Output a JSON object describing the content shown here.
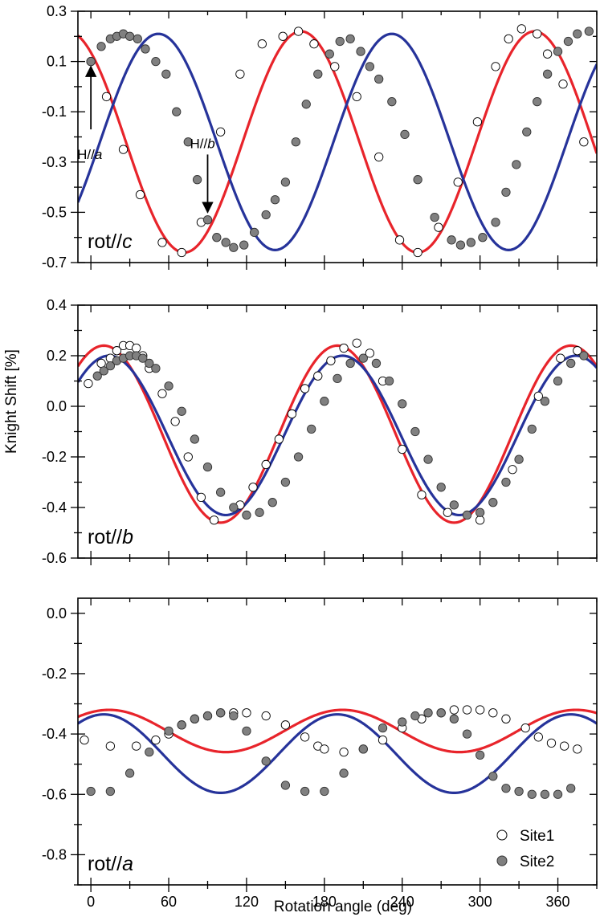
{
  "figure": {
    "ylabel": "Knight Shift [%]",
    "xlabel": "Rotation angle (deg)"
  },
  "legend": {
    "site1": "Site1",
    "site2": "Site2"
  },
  "colors": {
    "site1_line": "#e8242b",
    "site2_line": "#26339a",
    "site1_marker_fill": "#ffffff",
    "site2_marker_fill": "#808080"
  },
  "chart_data": [
    {
      "type": "line",
      "panel_label": "rot//c",
      "x_axis": {
        "range": [
          -10,
          390
        ],
        "ticks": [
          0,
          60,
          120,
          180,
          240,
          300,
          360
        ],
        "show_tick_labels": false
      },
      "y_axis": {
        "range": [
          -0.7,
          0.3
        ],
        "ticks": [
          0.3,
          0.1,
          -0.1,
          -0.3,
          -0.5,
          -0.7
        ],
        "tick_labels": [
          "0.3",
          "0.1",
          "-0.1",
          "-0.3",
          "-0.5",
          "-0.7"
        ]
      },
      "annotations": [
        {
          "text_main": "H//",
          "text_italic": "a",
          "arrow_x": 0,
          "arrow_from_y": -0.17,
          "arrow_to_y": 0.08
        },
        {
          "text_main": "H//",
          "text_italic": "b",
          "arrow_x": 90,
          "arrow_from_y": -0.27,
          "arrow_to_y": -0.5
        }
      ],
      "series": [
        {
          "name": "Site1",
          "line": {
            "mean": -0.22,
            "amplitude": 0.44,
            "phase_deg": -18
          },
          "points": {
            "x": [
              0,
              12,
              25,
              38,
              55,
              70,
              85,
              100,
              115,
              132,
              148,
              160,
              172,
              188,
              205,
              222,
              238,
              252,
              268,
              283,
              298,
              312,
              322,
              332,
              344,
              352,
              364,
              380
            ],
            "y": [
              0.1,
              -0.04,
              -0.25,
              -0.43,
              -0.62,
              -0.66,
              -0.54,
              -0.18,
              0.05,
              0.17,
              0.2,
              0.22,
              0.17,
              0.08,
              -0.04,
              -0.28,
              -0.61,
              -0.66,
              -0.56,
              -0.38,
              -0.14,
              0.08,
              0.19,
              0.23,
              0.21,
              0.13,
              0.01,
              -0.22
            ]
          }
        },
        {
          "name": "Site2",
          "line": {
            "mean": -0.22,
            "amplitude": 0.43,
            "phase_deg": 52
          },
          "points": {
            "x": [
              0,
              8,
              15,
              20,
              25,
              30,
              36,
              42,
              50,
              58,
              66,
              75,
              82,
              90,
              97,
              104,
              110,
              118,
              126,
              135,
              142,
              150,
              158,
              166,
              175,
              184,
              192,
              200,
              208,
              215,
              222,
              232,
              242,
              252,
              265,
              278,
              285,
              293,
              302,
              312,
              320,
              328,
              336,
              344,
              352,
              360,
              368,
              375,
              384
            ],
            "y": [
              0.1,
              0.16,
              0.19,
              0.2,
              0.21,
              0.2,
              0.19,
              0.15,
              0.1,
              0.05,
              -0.1,
              -0.22,
              -0.37,
              -0.53,
              -0.6,
              -0.62,
              -0.64,
              -0.63,
              -0.58,
              -0.51,
              -0.45,
              -0.38,
              -0.22,
              -0.07,
              0.05,
              0.13,
              0.18,
              0.19,
              0.14,
              0.08,
              0.03,
              -0.06,
              -0.19,
              -0.37,
              -0.52,
              -0.61,
              -0.63,
              -0.62,
              -0.6,
              -0.54,
              -0.42,
              -0.31,
              -0.18,
              -0.06,
              0.05,
              0.14,
              0.18,
              0.21,
              0.22
            ]
          }
        }
      ]
    },
    {
      "type": "line",
      "panel_label": "rot//b",
      "x_axis": {
        "range": [
          -10,
          390
        ],
        "ticks": [
          0,
          60,
          120,
          180,
          240,
          300,
          360
        ],
        "show_tick_labels": false
      },
      "y_axis": {
        "range": [
          -0.6,
          0.4
        ],
        "ticks": [
          0.4,
          0.2,
          0.0,
          -0.2,
          -0.4,
          -0.6
        ],
        "tick_labels": [
          "0.4",
          "0.2",
          "0.0",
          "-0.2",
          "-0.4",
          "-0.6"
        ]
      },
      "series": [
        {
          "name": "Site1",
          "line": {
            "mean": -0.11,
            "amplitude": 0.35,
            "phase_deg": 10
          },
          "points": {
            "x": [
              -2,
              8,
              15,
              20,
              25,
              30,
              35,
              40,
              45,
              55,
              65,
              75,
              85,
              95,
              115,
              125,
              135,
              145,
              155,
              165,
              175,
              185,
              195,
              205,
              215,
              225,
              240,
              255,
              275,
              300,
              325,
              345,
              362,
              375
            ],
            "y": [
              0.09,
              0.17,
              0.19,
              0.22,
              0.24,
              0.24,
              0.23,
              0.2,
              0.15,
              0.05,
              -0.06,
              -0.2,
              -0.36,
              -0.45,
              -0.39,
              -0.32,
              -0.23,
              -0.13,
              -0.03,
              0.07,
              0.12,
              0.18,
              0.23,
              0.25,
              0.21,
              0.1,
              -0.17,
              -0.35,
              -0.42,
              -0.45,
              -0.25,
              0.04,
              0.19,
              0.22
            ]
          }
        },
        {
          "name": "Site2",
          "line": {
            "mean": -0.115,
            "amplitude": 0.315,
            "phase_deg": 14
          },
          "points": {
            "x": [
              5,
              10,
              15,
              20,
              25,
              30,
              35,
              40,
              45,
              50,
              60,
              70,
              80,
              90,
              100,
              110,
              120,
              130,
              140,
              150,
              160,
              170,
              180,
              190,
              200,
              210,
              220,
              230,
              240,
              250,
              260,
              270,
              280,
              290,
              300,
              310,
              320,
              330,
              340,
              350,
              360,
              370,
              380
            ],
            "y": [
              0.12,
              0.14,
              0.16,
              0.18,
              0.19,
              0.2,
              0.2,
              0.19,
              0.17,
              0.15,
              0.08,
              -0.02,
              -0.13,
              -0.24,
              -0.34,
              -0.4,
              -0.43,
              -0.42,
              -0.38,
              -0.3,
              -0.2,
              -0.09,
              0.02,
              0.11,
              0.17,
              0.19,
              0.17,
              0.1,
              0.01,
              -0.1,
              -0.21,
              -0.32,
              -0.39,
              -0.43,
              -0.42,
              -0.38,
              -0.3,
              -0.21,
              -0.09,
              0.02,
              0.1,
              0.17,
              0.2
            ]
          }
        }
      ]
    },
    {
      "type": "line",
      "panel_label": "rot//a",
      "x_axis": {
        "range": [
          -10,
          390
        ],
        "ticks": [
          0,
          60,
          120,
          180,
          240,
          300,
          360
        ],
        "tick_labels": [
          "0",
          "60",
          "120",
          "180",
          "240",
          "300",
          "360"
        ],
        "show_tick_labels": true
      },
      "y_axis": {
        "range": [
          -0.9,
          0.05
        ],
        "ticks": [
          0.0,
          -0.2,
          -0.4,
          -0.6,
          -0.8
        ],
        "tick_labels": [
          "0.0",
          "-0.2",
          "-0.4",
          "-0.6",
          "-0.8"
        ]
      },
      "series": [
        {
          "name": "Site1",
          "line": {
            "mean": -0.39,
            "amplitude": 0.07,
            "phase_deg": 14
          },
          "points": {
            "x": [
              -5,
              15,
              35,
              50,
              60,
              70,
              80,
              90,
              100,
              110,
              120,
              135,
              150,
              165,
              175,
              180,
              195,
              210,
              225,
              240,
              255,
              270,
              280,
              290,
              300,
              310,
              320,
              335,
              345,
              355,
              365,
              375
            ],
            "y": [
              -0.42,
              -0.44,
              -0.44,
              -0.42,
              -0.4,
              -0.37,
              -0.35,
              -0.34,
              -0.33,
              -0.33,
              -0.33,
              -0.34,
              -0.37,
              -0.41,
              -0.44,
              -0.45,
              -0.46,
              -0.45,
              -0.42,
              -0.38,
              -0.35,
              -0.33,
              -0.32,
              -0.32,
              -0.32,
              -0.33,
              -0.35,
              -0.38,
              -0.41,
              -0.43,
              -0.44,
              -0.45
            ]
          }
        },
        {
          "name": "Site2",
          "line": {
            "mean": -0.465,
            "amplitude": 0.13,
            "phase_deg": 10
          },
          "points": {
            "x": [
              0,
              15,
              30,
              45,
              60,
              70,
              80,
              90,
              100,
              110,
              120,
              135,
              150,
              165,
              180,
              195,
              210,
              225,
              240,
              250,
              260,
              270,
              280,
              290,
              300,
              310,
              320,
              330,
              340,
              350,
              360,
              370
            ],
            "y": [
              -0.59,
              -0.59,
              -0.53,
              -0.46,
              -0.39,
              -0.37,
              -0.35,
              -0.34,
              -0.33,
              -0.34,
              -0.39,
              -0.49,
              -0.57,
              -0.59,
              -0.59,
              -0.53,
              -0.45,
              -0.38,
              -0.36,
              -0.34,
              -0.33,
              -0.33,
              -0.35,
              -0.4,
              -0.47,
              -0.54,
              -0.58,
              -0.59,
              -0.6,
              -0.6,
              -0.6,
              -0.58
            ]
          }
        }
      ]
    }
  ]
}
